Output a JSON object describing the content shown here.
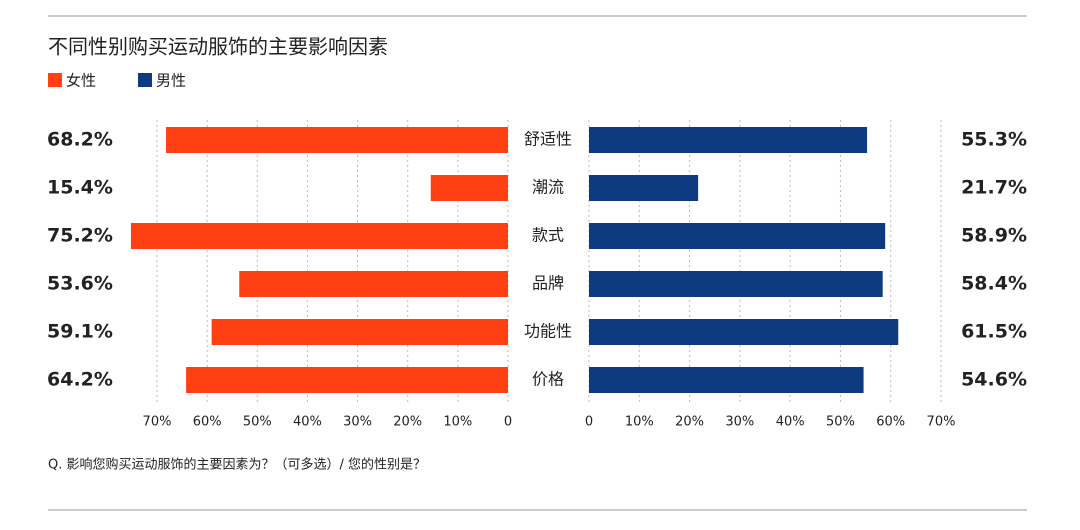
{
  "chart_data": {
    "type": "butterfly",
    "title": "不同性别购买运动服饰的主要影响因素",
    "categories": [
      "舒适性",
      "潮流",
      "款式",
      "品牌",
      "功能性",
      "价格"
    ],
    "series": [
      {
        "name": "女性",
        "color": "#ff4013",
        "axis": "x",
        "values": [
          68.2,
          15.4,
          75.2,
          53.6,
          59.1,
          64.2
        ],
        "value_labels": [
          "68.2%",
          "15.4%",
          "75.2%",
          "53.6%",
          "59.1%",
          "64.2%"
        ]
      },
      {
        "name": "男性",
        "color": "#0d3a80",
        "axis": "x2",
        "values": [
          55.3,
          21.7,
          58.9,
          58.4,
          61.5,
          54.6
        ],
        "value_labels": [
          "55.3%",
          "21.7%",
          "58.9%",
          "58.4%",
          "61.5%",
          "54.6%"
        ]
      }
    ],
    "xlim": [
      0,
      76
    ],
    "xticks": [
      0,
      {
        "value": 10,
        "label": "10%"
      },
      {
        "value": 20,
        "label": "20%"
      },
      {
        "value": 30,
        "label": "30%"
      },
      {
        "value": 40,
        "label": "40%"
      },
      {
        "value": 50,
        "label": "50%"
      },
      {
        "value": 60,
        "label": "60%"
      },
      {
        "value": 70,
        "label": "70%"
      }
    ],
    "x2lim": [
      0,
      76
    ],
    "x2ticks": [
      0,
      {
        "value": 10,
        "label": "10%"
      },
      {
        "value": 20,
        "label": "20%"
      },
      {
        "value": 30,
        "label": "30%"
      },
      {
        "value": 40,
        "label": "40%"
      },
      {
        "value": 50,
        "label": "50%"
      },
      {
        "value": 60,
        "label": "60%"
      },
      {
        "value": 70,
        "label": "70%"
      }
    ],
    "grid": true,
    "note": "Q. 影响您购买运动服饰的主要因素为？（可多选）/ 您的性别是？"
  }
}
